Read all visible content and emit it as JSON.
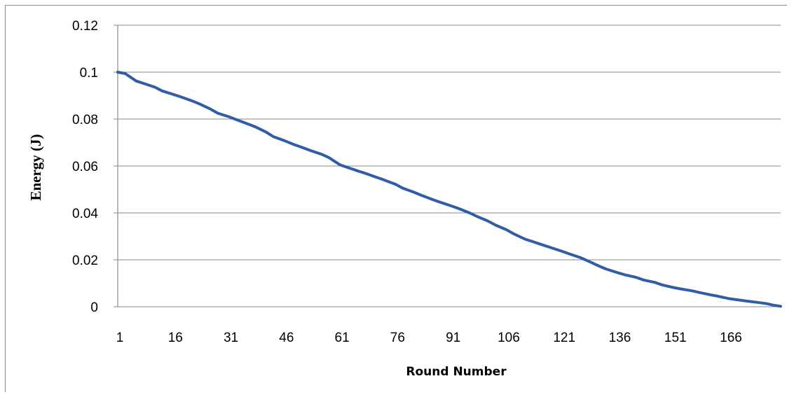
{
  "chart_data": {
    "type": "line",
    "title": "",
    "xlabel": "Round Number",
    "ylabel": "Energy (J)",
    "x_tick_labels": [
      "1",
      "16",
      "31",
      "46",
      "61",
      "76",
      "91",
      "106",
      "121",
      "136",
      "151",
      "166"
    ],
    "y_tick_labels": [
      "0",
      "0.02",
      "0.04",
      "0.06",
      "0.08",
      "0.1",
      "0.12"
    ],
    "xlim": [
      1,
      180
    ],
    "ylim": [
      0,
      0.12
    ],
    "grid": true,
    "legend": "none",
    "series": [
      {
        "color": "#2f5da8",
        "x": [
          1,
          3,
          6,
          8,
          11,
          13,
          16,
          18,
          21,
          23,
          26,
          28,
          31,
          33,
          36,
          38,
          41,
          43,
          46,
          48,
          51,
          53,
          56,
          58,
          61,
          63,
          66,
          68,
          71,
          73,
          76,
          78,
          81,
          83,
          86,
          88,
          91,
          93,
          96,
          98,
          101,
          103,
          106,
          108,
          111,
          113,
          116,
          118,
          121,
          123,
          126,
          128,
          131,
          133,
          136,
          138,
          141,
          143,
          146,
          148,
          151,
          153,
          156,
          158,
          161,
          163,
          166,
          168,
          171,
          173,
          176,
          178,
          180
        ],
        "y": [
          0.1,
          0.0994,
          0.0962,
          0.0952,
          0.0936,
          0.092,
          0.0905,
          0.0895,
          0.0878,
          0.0865,
          0.0843,
          0.0825,
          0.081,
          0.0798,
          0.078,
          0.0768,
          0.0745,
          0.0725,
          0.0708,
          0.0695,
          0.0678,
          0.0666,
          0.065,
          0.0636,
          0.0605,
          0.0594,
          0.0578,
          0.0568,
          0.0551,
          0.054,
          0.0522,
          0.0505,
          0.0488,
          0.0475,
          0.0457,
          0.0446,
          0.043,
          0.0419,
          0.04,
          0.0385,
          0.0365,
          0.0348,
          0.0328,
          0.031,
          0.0288,
          0.0278,
          0.0262,
          0.0252,
          0.0236,
          0.0225,
          0.0209,
          0.0195,
          0.0173,
          0.016,
          0.0145,
          0.0136,
          0.0125,
          0.0114,
          0.0104,
          0.0093,
          0.0082,
          0.0076,
          0.0068,
          0.0061,
          0.0051,
          0.0045,
          0.0035,
          0.003,
          0.0024,
          0.002,
          0.0014,
          0.0007,
          0.0002
        ]
      }
    ]
  }
}
